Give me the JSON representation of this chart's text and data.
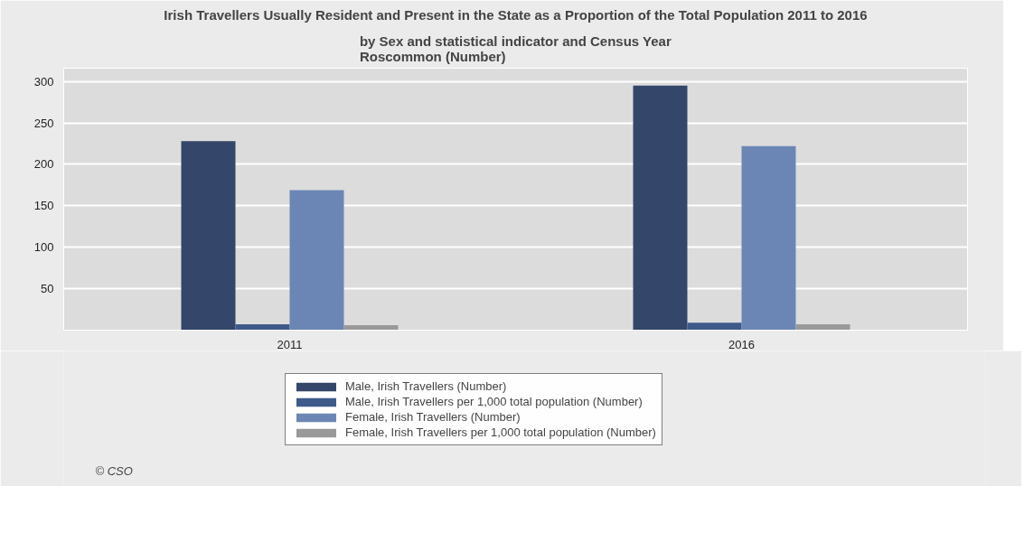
{
  "chart_data": {
    "type": "bar",
    "title": "Irish Travellers Usually Resident and Present in the State as a Proportion of the Total Population 2011 to 2016",
    "subtitle": "by Sex and statistical indicator and Census Year\nRoscommon (Number)",
    "categories": [
      "2011",
      "2016"
    ],
    "series": [
      {
        "name": "Male, Irish Travellers (Number)",
        "color": "#344669",
        "values": [
          228,
          295
        ]
      },
      {
        "name": "Male, Irish Travellers per 1,000 total population (Number)",
        "color": "#3e5a8a",
        "values": [
          7,
          9
        ]
      },
      {
        "name": "Female, Irish Travellers (Number)",
        "color": "#6b86b5",
        "values": [
          169,
          222
        ]
      },
      {
        "name": "Female, Irish Travellers per 1,000 total population (Number)",
        "color": "#999999",
        "values": [
          6,
          7
        ]
      }
    ],
    "ylim": [
      0,
      316
    ],
    "yticks": [
      50,
      100,
      150,
      200,
      250,
      300
    ],
    "grid": "y",
    "legend": "bottom",
    "annotations": [
      "© CSO"
    ]
  }
}
